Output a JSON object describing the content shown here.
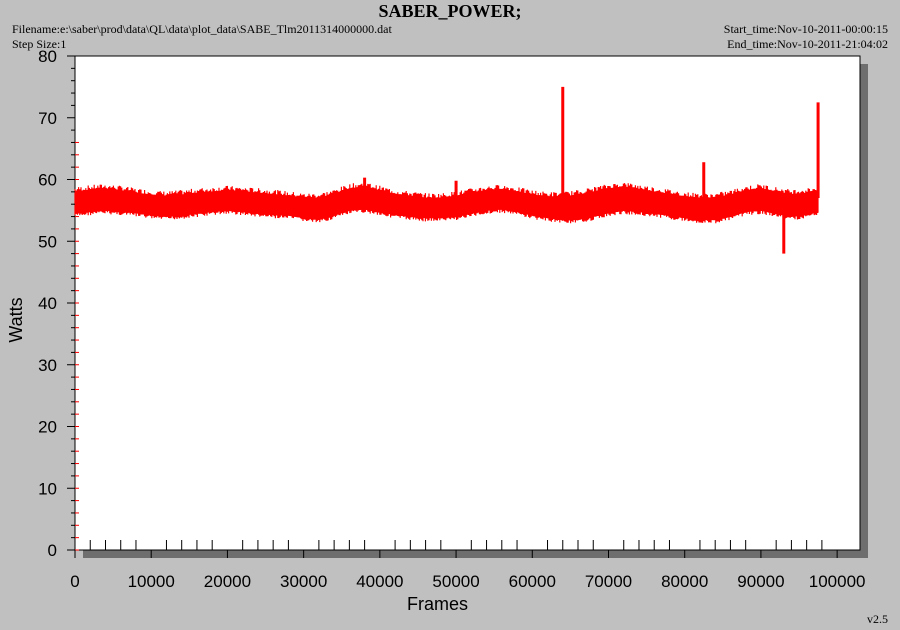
{
  "header": {
    "title": "SABER_POWER;",
    "filename": "Filename:e:\\saber\\prod\\data\\QL\\data\\plot_data\\SABE_Tlm2011314000000.dat",
    "step_size": "Step Size:1",
    "start_time": "Start_time:Nov-10-2011-00:00:15",
    "end_time": "End_time:Nov-10-2011-21:04:02",
    "version": "v2.5"
  },
  "colors": {
    "background": "#c0c0c0",
    "plot_area": "#ffffff",
    "shadow": "#6e6e6e",
    "series": "#ff0000",
    "axis": "#000000"
  },
  "chart_data": {
    "type": "line",
    "title": "",
    "xlabel": "Frames",
    "ylabel": "Watts",
    "xlim": [
      0,
      103000
    ],
    "ylim": [
      0,
      80
    ],
    "x_ticks": [
      0,
      10000,
      20000,
      30000,
      40000,
      50000,
      60000,
      70000,
      80000,
      90000,
      100000
    ],
    "y_ticks": [
      0,
      10,
      20,
      30,
      40,
      50,
      60,
      70,
      80
    ],
    "grid": false,
    "legend": "none",
    "series": [
      {
        "x": [
          0,
          2000,
          4000,
          6000,
          8000,
          10000,
          12000,
          14000,
          16000,
          18000,
          20000,
          22000,
          24000,
          26000,
          28000,
          30000,
          32000,
          34000,
          36000,
          38000,
          40000,
          42000,
          44000,
          46000,
          48000,
          50000,
          52000,
          54000,
          56000,
          58000,
          60000,
          62000,
          64000,
          66000,
          68000,
          70000,
          72000,
          74000,
          76000,
          78000,
          80000,
          82000,
          84000,
          86000,
          88000,
          90000,
          92000,
          94000,
          96000,
          97500
        ],
        "y_min": [
          54.5,
          54.8,
          55.0,
          54.8,
          54.6,
          54.2,
          54.0,
          54.2,
          54.5,
          54.8,
          55.0,
          54.8,
          54.5,
          54.3,
          54.2,
          53.8,
          53.5,
          54.2,
          55.0,
          55.2,
          54.8,
          54.3,
          54.0,
          53.8,
          53.8,
          54.0,
          54.5,
          55.0,
          55.2,
          54.8,
          54.2,
          53.8,
          53.5,
          53.5,
          54.0,
          54.6,
          55.0,
          54.8,
          54.5,
          54.2,
          53.8,
          53.5,
          53.5,
          54.0,
          54.8,
          55.0,
          54.5,
          54.0,
          54.3,
          54.8
        ],
        "y_max": [
          58.0,
          58.3,
          58.5,
          58.2,
          57.8,
          57.5,
          57.3,
          57.5,
          57.8,
          58.0,
          58.2,
          58.0,
          57.8,
          57.6,
          57.3,
          57.0,
          57.0,
          57.6,
          58.5,
          58.8,
          58.2,
          57.6,
          57.3,
          57.0,
          57.0,
          57.3,
          57.8,
          58.2,
          58.4,
          58.0,
          57.5,
          57.2,
          57.2,
          57.5,
          58.0,
          58.5,
          58.8,
          58.4,
          58.0,
          57.6,
          57.2,
          57.0,
          57.0,
          57.5,
          58.2,
          58.5,
          58.0,
          57.6,
          57.8,
          58.2
        ],
        "spikes": [
          [
            1500,
            55.5
          ],
          [
            38000,
            60.3
          ],
          [
            50000,
            59.8
          ],
          [
            64000,
            75.0
          ],
          [
            82500,
            62.8
          ],
          [
            93000,
            48.0
          ],
          [
            97500,
            72.5
          ]
        ]
      }
    ]
  }
}
